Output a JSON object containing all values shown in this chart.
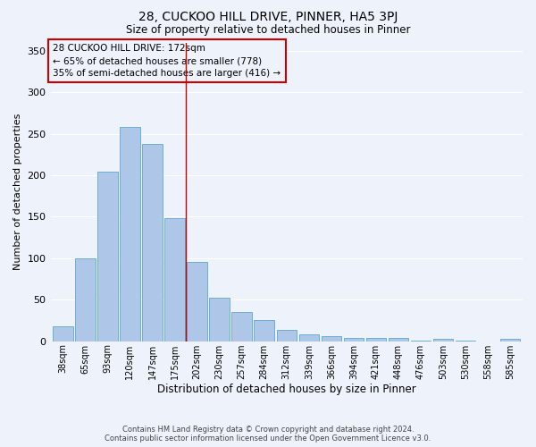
{
  "title1": "28, CUCKOO HILL DRIVE, PINNER, HA5 3PJ",
  "title2": "Size of property relative to detached houses in Pinner",
  "xlabel": "Distribution of detached houses by size in Pinner",
  "ylabel": "Number of detached properties",
  "bar_labels": [
    "38sqm",
    "65sqm",
    "93sqm",
    "120sqm",
    "147sqm",
    "175sqm",
    "202sqm",
    "230sqm",
    "257sqm",
    "284sqm",
    "312sqm",
    "339sqm",
    "366sqm",
    "394sqm",
    "421sqm",
    "448sqm",
    "476sqm",
    "503sqm",
    "530sqm",
    "558sqm",
    "585sqm"
  ],
  "bar_values": [
    18,
    100,
    204,
    258,
    238,
    148,
    95,
    52,
    35,
    25,
    14,
    8,
    6,
    4,
    4,
    4,
    1,
    3,
    1,
    0,
    3
  ],
  "bar_color": "#aec6e8",
  "bar_edge_color": "#6baed6",
  "vline_x": 5.5,
  "vline_color": "#cc0000",
  "annotation_lines": [
    "28 CUCKOO HILL DRIVE: 172sqm",
    "← 65% of detached houses are smaller (778)",
    "35% of semi-detached houses are larger (416) →"
  ],
  "annotation_box_color": "#cc0000",
  "ylim": [
    0,
    360
  ],
  "yticks": [
    0,
    50,
    100,
    150,
    200,
    250,
    300,
    350
  ],
  "background_color": "#eef2fa",
  "grid_color": "#ffffff",
  "footer1": "Contains HM Land Registry data © Crown copyright and database right 2024.",
  "footer2": "Contains public sector information licensed under the Open Government Licence v3.0."
}
